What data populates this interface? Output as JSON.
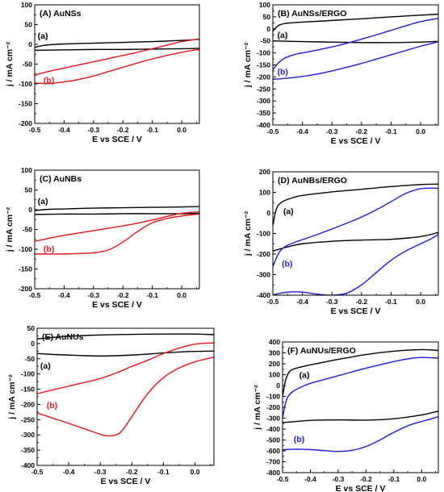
{
  "chart_data": [
    {
      "type": "line",
      "title": "(A) AuNSs",
      "xlabel": "E vs SCE / V",
      "ylabel": "j / mA cm⁻²",
      "xlim": [
        -0.5,
        0.06
      ],
      "ylim": [
        -200,
        100
      ],
      "xticks": [
        "-0.5",
        "-0.4",
        "-0.3",
        "-0.2",
        "-0.1",
        "0.0"
      ],
      "yticks": [
        "100",
        "50",
        "0",
        "-50",
        "-100",
        "-150",
        "-200"
      ],
      "grid": false,
      "series": [
        {
          "name": "(a)",
          "color": "#000000",
          "sweeps": [
            {
              "x": [
                -0.5,
                -0.48,
                -0.45,
                -0.4,
                -0.3,
                -0.2,
                -0.1,
                0,
                0.06
              ],
              "y": [
                -8,
                -4,
                -1,
                1,
                3,
                5,
                7,
                10,
                13
              ]
            },
            {
              "x": [
                0.06,
                0,
                -0.1,
                -0.2,
                -0.3,
                -0.4,
                -0.5
              ],
              "y": [
                -10,
                -11,
                -12,
                -13,
                -13,
                -14,
                -15
              ]
            }
          ]
        },
        {
          "name": "(b)",
          "color": "#e8141b",
          "sweeps": [
            {
              "x": [
                -0.5,
                -0.45,
                -0.4,
                -0.35,
                -0.3,
                -0.25,
                -0.2,
                -0.15,
                -0.1,
                -0.05,
                0,
                0.06
              ],
              "y": [
                -78,
                -68,
                -60,
                -52,
                -44,
                -36,
                -28,
                -20,
                -11,
                -2,
                7,
                14
              ]
            },
            {
              "x": [
                0.06,
                0.03,
                0,
                -0.05,
                -0.1,
                -0.15,
                -0.2,
                -0.25,
                -0.3,
                -0.35,
                -0.4,
                -0.45,
                -0.5
              ],
              "y": [
                -13,
                -16,
                -20,
                -28,
                -37,
                -47,
                -58,
                -69,
                -80,
                -89,
                -95,
                -99,
                -98
              ]
            }
          ]
        }
      ]
    },
    {
      "type": "line",
      "title": "(B) AuNSs/ERGO",
      "xlabel": "E vs SCE / V",
      "ylabel": "j / mA cm⁻²",
      "xlim": [
        -0.5,
        0.06
      ],
      "ylim": [
        -400,
        100
      ],
      "xticks": [
        "-0.5",
        "-0.4",
        "-0.3",
        "-0.2",
        "-0.1",
        "0.0"
      ],
      "yticks": [
        "100",
        "50",
        "0",
        "-50",
        "-100",
        "-150",
        "-200",
        "-250",
        "-300",
        "-350",
        "-400"
      ],
      "grid": false,
      "series": [
        {
          "name": "(a)",
          "color": "#000000",
          "sweeps": [
            {
              "x": [
                -0.5,
                -0.49,
                -0.48,
                -0.46,
                -0.43,
                -0.4,
                -0.3,
                -0.2,
                -0.1,
                0,
                0.06
              ],
              "y": [
                -10,
                5,
                15,
                22,
                26,
                28,
                35,
                42,
                50,
                57,
                61
              ]
            },
            {
              "x": [
                0.06,
                0,
                -0.1,
                -0.2,
                -0.3,
                -0.4,
                -0.5
              ],
              "y": [
                -52,
                -55,
                -57,
                -57,
                -55,
                -53,
                -50
              ]
            }
          ]
        },
        {
          "name": "(b)",
          "color": "#1c1cd8",
          "sweeps": [
            {
              "x": [
                -0.5,
                -0.48,
                -0.46,
                -0.43,
                -0.4,
                -0.35,
                -0.3,
                -0.25,
                -0.2,
                -0.15,
                -0.1,
                -0.05,
                0,
                0.06
              ],
              "y": [
                -170,
                -140,
                -122,
                -108,
                -100,
                -88,
                -75,
                -60,
                -43,
                -25,
                -6,
                13,
                30,
                44
              ]
            },
            {
              "x": [
                0.06,
                0.03,
                0,
                -0.05,
                -0.1,
                -0.15,
                -0.2,
                -0.25,
                -0.3,
                -0.35,
                -0.4,
                -0.45,
                -0.5
              ],
              "y": [
                -53,
                -63,
                -72,
                -90,
                -108,
                -126,
                -144,
                -160,
                -175,
                -188,
                -198,
                -205,
                -210
              ]
            }
          ]
        }
      ]
    },
    {
      "type": "line",
      "title": "(C) AuNBs",
      "xlabel": "E vs SCE / V",
      "ylabel": "j / mA cm⁻²",
      "xlim": [
        -0.5,
        0.06
      ],
      "ylim": [
        -200,
        100
      ],
      "xticks": [
        "-0.5",
        "-0.4",
        "-0.3",
        "-0.2",
        "-0.1",
        "0.0"
      ],
      "yticks": [
        "100",
        "50",
        "0",
        "-50",
        "-100",
        "-150",
        "-200"
      ],
      "grid": false,
      "series": [
        {
          "name": "(a)",
          "color": "#000000",
          "sweeps": [
            {
              "x": [
                -0.5,
                -0.45,
                -0.4,
                -0.3,
                -0.2,
                -0.1,
                0,
                0.06
              ],
              "y": [
                -2,
                1,
                2,
                4,
                5,
                6,
                7,
                8
              ]
            },
            {
              "x": [
                0.06,
                0,
                -0.1,
                -0.2,
                -0.3,
                -0.4,
                -0.5
              ],
              "y": [
                -9,
                -10,
                -10,
                -10,
                -11,
                -11,
                -12
              ]
            }
          ]
        },
        {
          "name": "(b)",
          "color": "#e8141b",
          "sweeps": [
            {
              "x": [
                -0.5,
                -0.45,
                -0.4,
                -0.35,
                -0.3,
                -0.25,
                -0.2,
                -0.15,
                -0.1,
                -0.05,
                0,
                0.06
              ],
              "y": [
                -80,
                -72,
                -65,
                -59,
                -53,
                -47,
                -41,
                -34,
                -26,
                -17,
                -9,
                -5
              ]
            },
            {
              "x": [
                0.06,
                0.03,
                0,
                -0.05,
                -0.1,
                -0.15,
                -0.2,
                -0.25,
                -0.3,
                -0.35,
                -0.4,
                -0.45,
                -0.5
              ],
              "y": [
                -11,
                -13,
                -16,
                -22,
                -33,
                -55,
                -82,
                -102,
                -109,
                -111,
                -112,
                -112,
                -112
              ]
            }
          ]
        }
      ]
    },
    {
      "type": "line",
      "title": "(D) AuNBs/ERGO",
      "xlabel": "E vs SCE / V",
      "ylabel": "j / mA cm⁻²",
      "xlim": [
        -0.5,
        0.06
      ],
      "ylim": [
        -400,
        200
      ],
      "xticks": [
        "-0.5",
        "-0.4",
        "-0.3",
        "-0.2",
        "-0.1",
        "0.0"
      ],
      "yticks": [
        "200",
        "100",
        "0",
        "-100",
        "-200",
        "-300",
        "-400"
      ],
      "grid": false,
      "series": [
        {
          "name": "(a)",
          "color": "#000000",
          "sweeps": [
            {
              "x": [
                -0.5,
                -0.49,
                -0.48,
                -0.46,
                -0.43,
                -0.4,
                -0.3,
                -0.2,
                -0.1,
                0,
                0.06
              ],
              "y": [
                -60,
                10,
                40,
                60,
                75,
                85,
                102,
                115,
                128,
                138,
                140
              ]
            },
            {
              "x": [
                0.06,
                0,
                -0.1,
                -0.2,
                -0.3,
                -0.4,
                -0.45,
                -0.5
              ],
              "y": [
                -95,
                -115,
                -128,
                -132,
                -138,
                -150,
                -165,
                -185
              ]
            }
          ]
        },
        {
          "name": "(b)",
          "color": "#1c1cd8",
          "sweeps": [
            {
              "x": [
                -0.5,
                -0.48,
                -0.46,
                -0.43,
                -0.4,
                -0.35,
                -0.3,
                -0.25,
                -0.2,
                -0.15,
                -0.1,
                -0.05,
                0,
                0.06
              ],
              "y": [
                -260,
                -195,
                -165,
                -145,
                -130,
                -105,
                -78,
                -50,
                -20,
                15,
                55,
                95,
                118,
                120
              ]
            },
            {
              "x": [
                0.06,
                0.03,
                0,
                -0.05,
                -0.1,
                -0.15,
                -0.2,
                -0.25,
                -0.3,
                -0.35,
                -0.4,
                -0.45,
                -0.5
              ],
              "y": [
                -105,
                -130,
                -150,
                -185,
                -230,
                -290,
                -350,
                -390,
                -400,
                -395,
                -385,
                -385,
                -398
              ]
            }
          ]
        }
      ]
    },
    {
      "type": "line",
      "title": "(E) AuNUs",
      "xlabel": "E vs SCE / V",
      "ylabel": "j / mA cm⁻²",
      "xlim": [
        -0.5,
        0.06
      ],
      "ylim": [
        -400,
        50
      ],
      "xticks": [
        "-0.5",
        "-0.4",
        "-0.3",
        "-0.2",
        "-0.1",
        "0.0"
      ],
      "yticks": [
        "50",
        "0",
        "-50",
        "-100",
        "-150",
        "-200",
        "-250",
        "-300",
        "-350",
        "-400"
      ],
      "grid": false,
      "series": [
        {
          "name": "(a)",
          "color": "#000000",
          "sweeps": [
            {
              "x": [
                -0.5,
                -0.45,
                -0.4,
                -0.3,
                -0.2,
                -0.1,
                0,
                0.06
              ],
              "y": [
                15,
                20,
                24,
                28,
                30,
                31,
                31,
                29
              ]
            },
            {
              "x": [
                0.06,
                0,
                -0.05,
                -0.1,
                -0.15,
                -0.2,
                -0.25,
                -0.3,
                -0.35,
                -0.4,
                -0.45,
                -0.5
              ],
              "y": [
                -25,
                -26,
                -28,
                -31,
                -35,
                -38,
                -40,
                -41,
                -40,
                -38,
                -36,
                -33
              ]
            }
          ]
        },
        {
          "name": "(b)",
          "color": "#e8141b",
          "sweeps": [
            {
              "x": [
                -0.5,
                -0.45,
                -0.4,
                -0.35,
                -0.3,
                -0.25,
                -0.2,
                -0.15,
                -0.1,
                -0.05,
                0,
                0.06
              ],
              "y": [
                -165,
                -152,
                -140,
                -128,
                -115,
                -97,
                -75,
                -55,
                -33,
                -15,
                -2,
                2
              ]
            },
            {
              "x": [
                0.06,
                0.03,
                0,
                -0.05,
                -0.1,
                -0.15,
                -0.2,
                -0.23,
                -0.25,
                -0.28,
                -0.3,
                -0.35,
                -0.4,
                -0.45,
                -0.5
              ],
              "y": [
                -45,
                -52,
                -60,
                -80,
                -112,
                -165,
                -240,
                -285,
                -300,
                -303,
                -298,
                -280,
                -262,
                -245,
                -228
              ]
            }
          ]
        }
      ]
    },
    {
      "type": "line",
      "title": "(F) AuNUs/ERGO",
      "xlabel": "E vs SCE / V",
      "ylabel": "j / mA cm⁻²",
      "xlim": [
        -0.5,
        0.06
      ],
      "ylim": [
        -800,
        400
      ],
      "xticks": [
        "-0.5",
        "-0.4",
        "-0.3",
        "-0.2",
        "-0.1",
        "0.0"
      ],
      "yticks": [
        "400",
        "300",
        "200",
        "100",
        "0",
        "-100",
        "-200",
        "-300",
        "-400",
        "-500",
        "-600",
        "-700",
        "-800"
      ],
      "grid": false,
      "series": [
        {
          "name": "(a)",
          "color": "#000000",
          "sweeps": [
            {
              "x": [
                -0.5,
                -0.49,
                -0.48,
                -0.47,
                -0.45,
                -0.4,
                -0.35,
                -0.3,
                -0.2,
                -0.1,
                0,
                0.06
              ],
              "y": [
                -100,
                40,
                110,
                140,
                160,
                190,
                215,
                240,
                285,
                315,
                330,
                322
              ]
            },
            {
              "x": [
                0.06,
                0,
                -0.1,
                -0.2,
                -0.3,
                -0.4,
                -0.45,
                -0.5
              ],
              "y": [
                -235,
                -270,
                -305,
                -318,
                -315,
                -320,
                -330,
                -340
              ]
            }
          ]
        },
        {
          "name": "(b)",
          "color": "#1c1cd8",
          "sweeps": [
            {
              "x": [
                -0.5,
                -0.49,
                -0.48,
                -0.46,
                -0.43,
                -0.4,
                -0.35,
                -0.3,
                -0.25,
                -0.2,
                -0.15,
                -0.1,
                -0.05,
                0,
                0.06
              ],
              "y": [
                -300,
                -170,
                -100,
                -50,
                -10,
                20,
                55,
                90,
                125,
                160,
                190,
                220,
                245,
                258,
                252
              ]
            },
            {
              "x": [
                0.06,
                0.03,
                0,
                -0.05,
                -0.1,
                -0.15,
                -0.2,
                -0.25,
                -0.3,
                -0.35,
                -0.4,
                -0.45,
                -0.5
              ],
              "y": [
                -285,
                -310,
                -330,
                -370,
                -430,
                -500,
                -560,
                -595,
                -605,
                -598,
                -588,
                -585,
                -590
              ]
            }
          ]
        }
      ]
    }
  ]
}
